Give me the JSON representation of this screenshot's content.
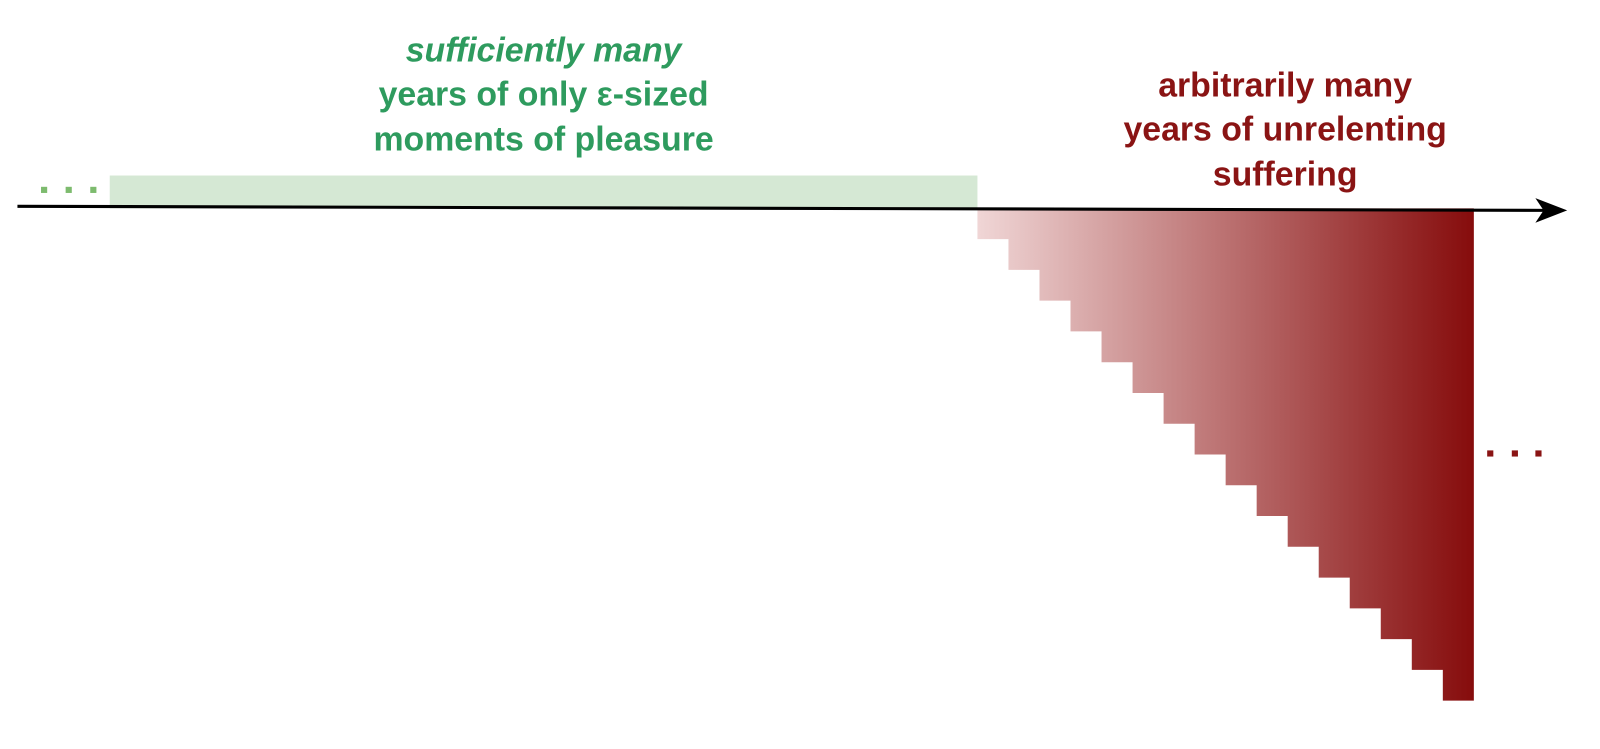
{
  "left_label": {
    "lines": [
      "sufficiently many",
      "years of only ε-sized",
      "moments of pleasure"
    ]
  },
  "right_label": {
    "lines": [
      "arbitrarily many",
      "years of unrelenting",
      "suffering"
    ]
  }
}
